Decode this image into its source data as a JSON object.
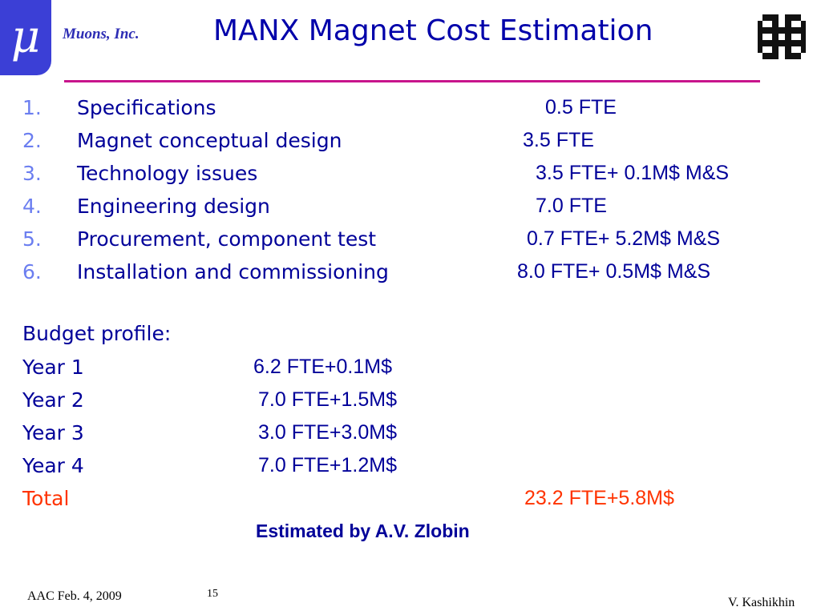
{
  "header": {
    "logo_glyph": "μ",
    "company": "Muons, Inc.",
    "title": "MANX  Magnet  Cost Estimation"
  },
  "tasks": [
    {
      "num": "1.",
      "name": "Specifications",
      "cost": "0.5 FTE"
    },
    {
      "num": "2.",
      "name": "Magnet conceptual design",
      "cost": "3.5 FTE"
    },
    {
      "num": "3.",
      "name": "Technology issues",
      "cost": "3.5 FTE+ 0.1M$ M&S"
    },
    {
      "num": "4.",
      "name": "Engineering design",
      "cost": "7.0 FTE"
    },
    {
      "num": "5.",
      "name": "Procurement, component test",
      "cost": "0.7 FTE+ 5.2M$ M&S"
    },
    {
      "num": "6.",
      "name": "Installation and commissioning",
      "cost": "8.0 FTE+ 0.5M$ M&S"
    }
  ],
  "budget": {
    "heading": "Budget profile:",
    "years": [
      {
        "label": "Year 1",
        "value": "6.2 FTE+0.1M$"
      },
      {
        "label": "Year 2",
        "value": "7.0 FTE+1.5M$"
      },
      {
        "label": "Year 3",
        "value": "3.0 FTE+3.0M$"
      },
      {
        "label": "Year 4",
        "value": "7.0 FTE+1.2M$"
      }
    ],
    "total_label": "Total",
    "total_value": "23.2 FTE+5.8M$"
  },
  "estimated_by": "Estimated by A.V. Zlobin",
  "footer": {
    "left": "AAC Feb. 4, 2009",
    "page": "15",
    "right": "V. Kashikhin"
  },
  "colors": {
    "title": "#0000aa",
    "text": "#000099",
    "numbers": "#6b7ef0",
    "rule": "#c8148c",
    "total": "#ff3300",
    "logo": "#3b3fd6"
  },
  "icons": [
    "mu-logo-icon",
    "fermilab-logo-icon"
  ]
}
